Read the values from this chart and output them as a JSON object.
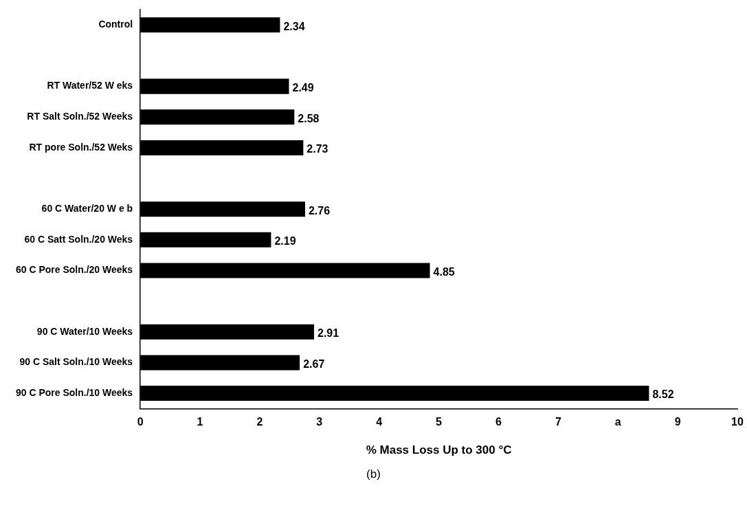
{
  "chart_data": {
    "type": "bar",
    "orientation": "horizontal",
    "xlabel": "% Mass Loss Up to 300 °C",
    "categories": [
      "Control",
      null,
      "RT Water/52 W eks",
      "RT Salt Soln./52 Weeks",
      "RT pore Soln./52 Weks",
      null,
      "60 C Water/20 W e b",
      "60 C Satt Soln./20 Weks",
      "60 C Pore Soln./20 Weeks",
      null,
      "90 C Water/10 Weeks",
      "90 C Salt Soln./10 Weeks",
      "90 C Pore Soln./10 Weeks"
    ],
    "values": [
      2.34,
      null,
      2.49,
      2.58,
      2.73,
      null,
      2.76,
      2.19,
      4.85,
      null,
      2.91,
      2.67,
      8.52
    ],
    "color": "#000000",
    "data_labels": true,
    "grid": false,
    "legend": false,
    "xlim": [
      0,
      10
    ],
    "xticks": [
      0,
      1,
      2,
      3,
      4,
      5,
      6,
      7,
      {
        "value": 8,
        "label": "a"
      },
      9,
      10
    ],
    "annotations": [
      "(b)"
    ]
  }
}
